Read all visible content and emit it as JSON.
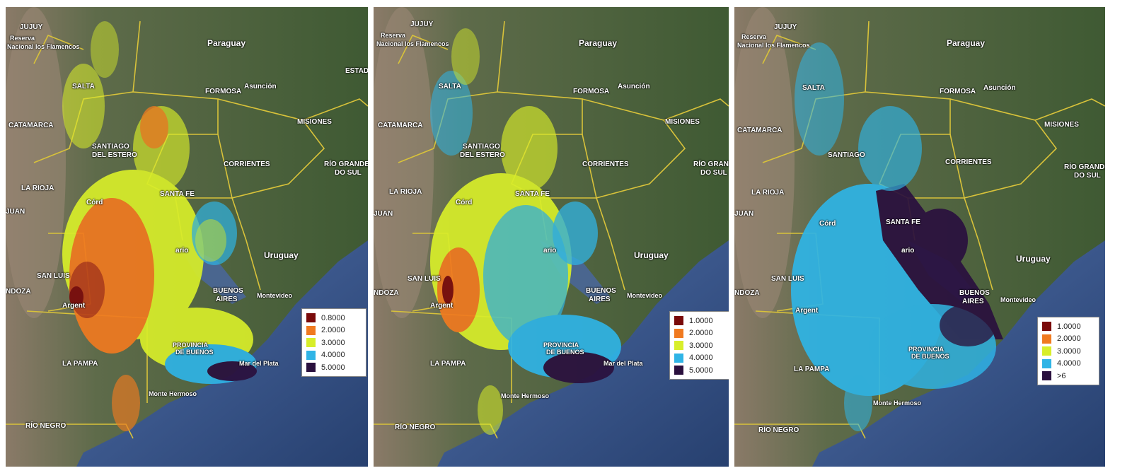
{
  "colors": {
    "c1": "#7a0a0a",
    "c2": "#f07a20",
    "c3": "#d8ee2a",
    "c4": "#2fb4e6",
    "c5": "#2a103e"
  },
  "map_labels": {
    "paraguay": "Paraguay",
    "formosa": "FORMOSA",
    "asuncion": "Asunción",
    "estado": "ESTAD",
    "misiones": "MISIONES",
    "corrientes": "CORRIENTES",
    "rio_grande": "RÍO GRANDE",
    "do_sul": "DO SUL",
    "santiago_1": "SANTIAGO",
    "del_estero": "DEL ESTERO",
    "santa_fe": "SANTA FE",
    "uruguay": "Uruguay",
    "buenos_1": "BUENOS",
    "aires": "AIRES",
    "montevideo": "Montevideo",
    "san_luis": "SAN LUIS",
    "la_rioja": "LA RIOJA",
    "catamarca": "CATAMARCA",
    "salta": "SALTA",
    "jujuy": "JUJUY",
    "la_pampa": "LA PAMPA",
    "rio_negro": "RÍO NEGRO",
    "mendoza": "NDOZA",
    "juan": "JUAN",
    "cordoba": "Córd",
    "rosario": "ario",
    "argentina": "Argent",
    "provincia": "PROVINCIA",
    "de_buenos": "DE BUENOS",
    "mar_del_plata": "Mar del Plata",
    "bahia": "Monte Hermoso",
    "reserva": "Reserva",
    "nacional": "Nacional los Flamencos"
  },
  "legends": [
    {
      "items": [
        "0.8000",
        "2.0000",
        "3.0000",
        "4.0000",
        "5.0000"
      ]
    },
    {
      "items": [
        "1.0000",
        "2.0000",
        "3.0000",
        "4.0000",
        "5.0000"
      ]
    },
    {
      "items": [
        "1.0000",
        "2.0000",
        "3.0000",
        "4.0000",
        ">6"
      ]
    }
  ]
}
